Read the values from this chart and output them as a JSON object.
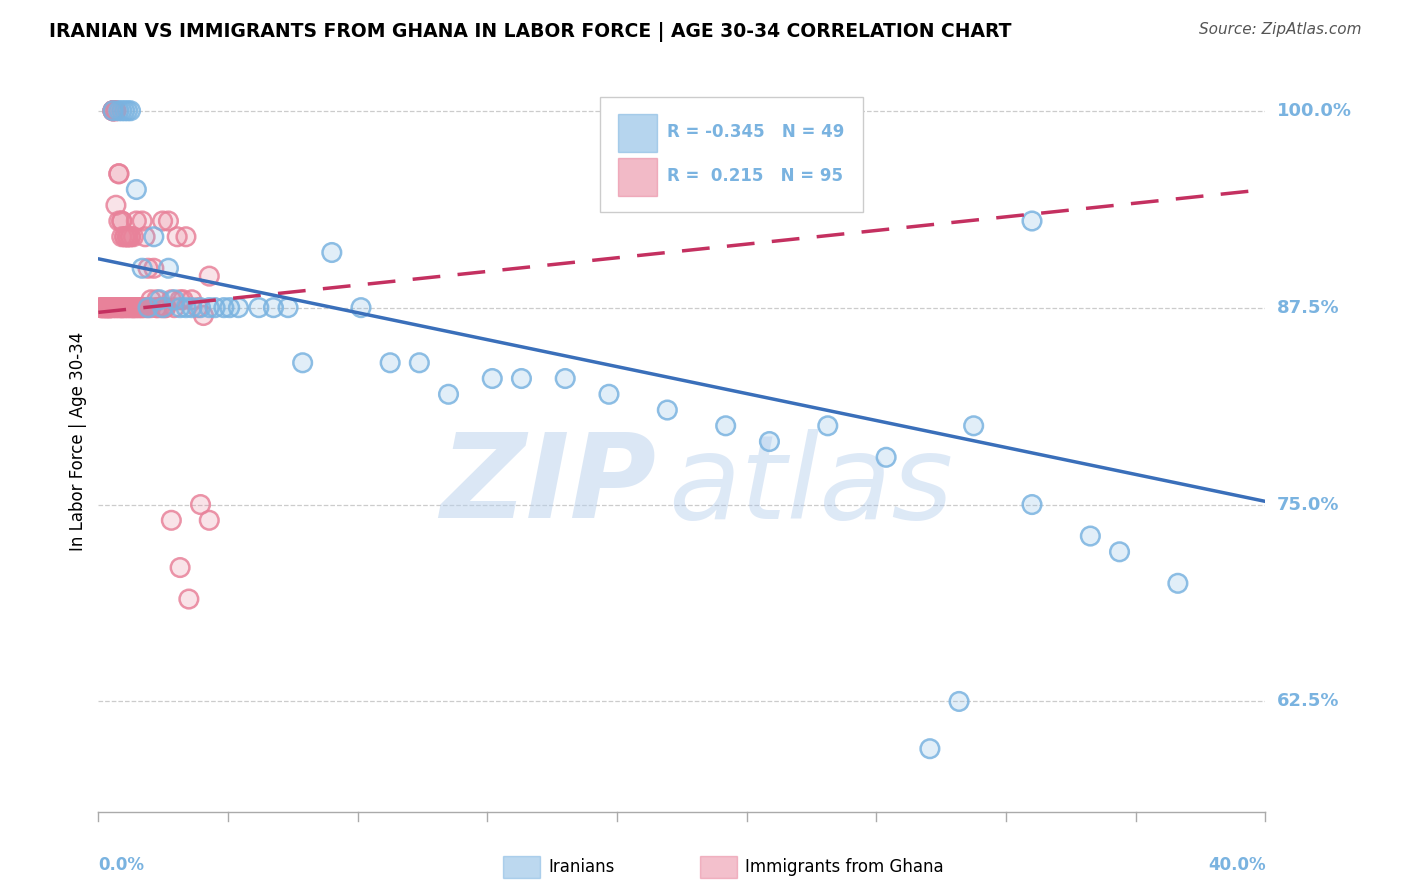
{
  "title": "IRANIAN VS IMMIGRANTS FROM GHANA IN LABOR FORCE | AGE 30-34 CORRELATION CHART",
  "source": "Source: ZipAtlas.com",
  "ylabel": "In Labor Force | Age 30-34",
  "xmin": 0.0,
  "xmax": 0.4,
  "ymin": 0.555,
  "ymax": 1.025,
  "yticks": [
    0.625,
    0.75,
    0.875,
    1.0
  ],
  "ytick_labels": [
    "62.5%",
    "75.0%",
    "87.5%",
    "100.0%"
  ],
  "legend_r_blue": "-0.345",
  "legend_n_blue": "49",
  "legend_r_pink": " 0.215",
  "legend_n_pink": "95",
  "blue_color": "#7ab3e0",
  "pink_color": "#e8829a",
  "trend_blue_color": "#3a6fba",
  "trend_pink_color": "#c43060",
  "watermark_color": "#c5daf0",
  "blue_trend_y0": 0.906,
  "blue_trend_y1": 0.752,
  "pink_trend_y0": 0.872,
  "pink_trend_y1": 0.95,
  "blue_x": [
    0.005,
    0.007,
    0.008,
    0.009,
    0.01,
    0.011,
    0.013,
    0.015,
    0.017,
    0.019,
    0.021,
    0.022,
    0.024,
    0.026,
    0.028,
    0.03,
    0.032,
    0.035,
    0.038,
    0.04,
    0.043,
    0.045,
    0.048,
    0.055,
    0.06,
    0.065,
    0.07,
    0.08,
    0.09,
    0.1,
    0.11,
    0.12,
    0.135,
    0.145,
    0.16,
    0.175,
    0.195,
    0.215,
    0.23,
    0.25,
    0.27,
    0.3,
    0.32,
    0.35,
    0.32,
    0.34,
    0.37,
    0.295,
    0.285
  ],
  "blue_y": [
    1.0,
    1.0,
    1.0,
    1.0,
    1.0,
    1.0,
    0.95,
    0.9,
    0.875,
    0.92,
    0.88,
    0.875,
    0.9,
    0.88,
    0.875,
    0.875,
    0.875,
    0.875,
    0.875,
    0.875,
    0.875,
    0.875,
    0.875,
    0.875,
    0.875,
    0.875,
    0.84,
    0.91,
    0.875,
    0.84,
    0.84,
    0.82,
    0.83,
    0.83,
    0.83,
    0.82,
    0.81,
    0.8,
    0.79,
    0.8,
    0.78,
    0.8,
    0.75,
    0.72,
    0.93,
    0.73,
    0.7,
    0.625,
    0.595
  ],
  "pink_x": [
    0.001,
    0.001,
    0.001,
    0.002,
    0.002,
    0.002,
    0.003,
    0.003,
    0.003,
    0.004,
    0.004,
    0.004,
    0.005,
    0.005,
    0.005,
    0.005,
    0.006,
    0.006,
    0.006,
    0.007,
    0.007,
    0.007,
    0.008,
    0.008,
    0.008,
    0.009,
    0.009,
    0.01,
    0.01,
    0.01,
    0.011,
    0.011,
    0.012,
    0.012,
    0.013,
    0.013,
    0.014,
    0.015,
    0.015,
    0.016,
    0.017,
    0.018,
    0.019,
    0.02,
    0.02,
    0.021,
    0.022,
    0.022,
    0.023,
    0.024,
    0.025,
    0.026,
    0.027,
    0.028,
    0.029,
    0.03,
    0.032,
    0.034,
    0.036,
    0.038,
    0.002,
    0.003,
    0.003,
    0.004,
    0.004,
    0.005,
    0.006,
    0.006,
    0.007,
    0.008,
    0.008,
    0.009,
    0.01,
    0.011,
    0.012,
    0.005,
    0.007,
    0.008,
    0.01,
    0.012,
    0.015,
    0.018,
    0.013,
    0.016,
    0.009,
    0.011,
    0.014,
    0.017,
    0.02,
    0.023,
    0.025,
    0.028,
    0.031,
    0.035,
    0.038
  ],
  "pink_y": [
    0.875,
    0.875,
    0.875,
    0.875,
    0.875,
    0.875,
    0.875,
    0.875,
    0.875,
    0.875,
    0.875,
    0.875,
    1.0,
    1.0,
    1.0,
    1.0,
    1.0,
    1.0,
    0.94,
    0.96,
    0.96,
    0.93,
    0.93,
    0.93,
    0.92,
    0.92,
    0.92,
    0.92,
    0.92,
    0.92,
    0.92,
    0.92,
    0.92,
    0.875,
    0.875,
    0.93,
    0.875,
    0.875,
    0.93,
    0.92,
    0.9,
    0.88,
    0.9,
    0.88,
    0.875,
    0.875,
    0.93,
    0.875,
    0.875,
    0.93,
    0.88,
    0.875,
    0.92,
    0.88,
    0.88,
    0.92,
    0.88,
    0.875,
    0.87,
    0.895,
    0.875,
    0.875,
    0.875,
    0.875,
    0.875,
    0.875,
    0.875,
    0.875,
    0.875,
    0.875,
    0.875,
    0.875,
    0.875,
    0.875,
    0.875,
    0.875,
    0.875,
    0.875,
    0.875,
    0.875,
    0.875,
    0.875,
    0.875,
    0.875,
    0.875,
    0.875,
    0.875,
    0.875,
    0.875,
    0.875,
    0.74,
    0.71,
    0.69,
    0.75,
    0.74
  ]
}
